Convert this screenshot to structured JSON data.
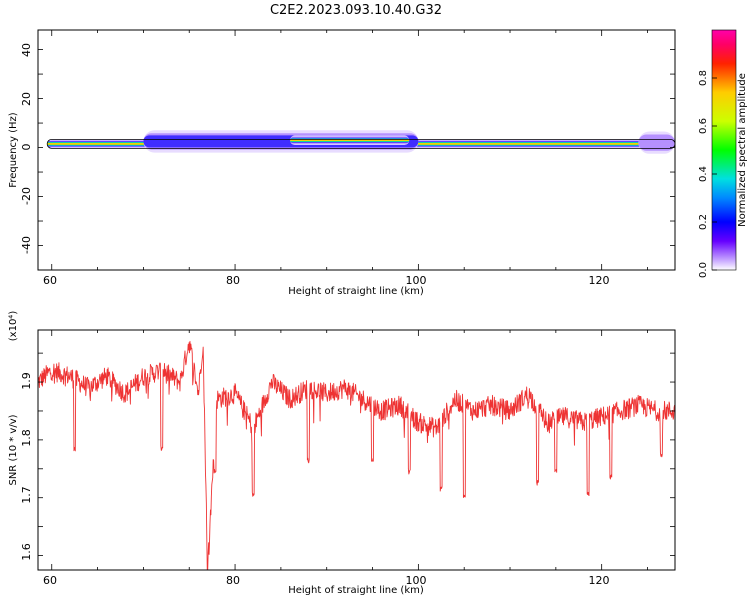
{
  "title": "C2E2.2023.093.10.40.G32",
  "chart_data": [
    {
      "type": "heatmap",
      "xlabel": "Height of straight line (km)",
      "ylabel": "Frequency (Hz)",
      "xlim": [
        58.5,
        128
      ],
      "ylim": [
        -50,
        48
      ],
      "x_ticks": [
        "60",
        "80",
        "100",
        "120"
      ],
      "y_ticks": [
        "40",
        "20",
        "0",
        "-20",
        "-40"
      ],
      "colorbar": {
        "label": "Normalized spectral amplitude",
        "range": [
          0,
          1
        ],
        "ticks": [
          "0.0",
          "0.2",
          "0.4",
          "0.6",
          "0.8"
        ]
      },
      "features": [
        {
          "x": [
            59.5,
            128
          ],
          "freq": 1.5,
          "halfwidth": 1.5,
          "amplitude": 0.9
        },
        {
          "x": [
            70,
            100
          ],
          "freq": 2.5,
          "halfwidth": 3.5,
          "amplitude": 0.45
        },
        {
          "x": [
            86,
            99
          ],
          "freq": 3,
          "halfwidth": 1.5,
          "amplitude": 0.85
        },
        {
          "x": [
            124,
            128
          ],
          "freq": 2,
          "halfwidth": 3.5,
          "amplitude": 0.3
        }
      ]
    },
    {
      "type": "line",
      "xlabel": "Height of straight line (km)",
      "ylabel": "SNR (10 * v/v)",
      "multiplier_label": "(x10⁴)",
      "xlim": [
        58.5,
        128
      ],
      "ylim": [
        1.575,
        1.99
      ],
      "x_ticks": [
        "60",
        "80",
        "100",
        "120"
      ],
      "y_ticks": [
        "1.9",
        "1.8",
        "1.7",
        "1.6"
      ],
      "color": "#ee3333",
      "key_points": [
        [
          58.5,
          1.9
        ],
        [
          60,
          1.92
        ],
        [
          62,
          1.91
        ],
        [
          64,
          1.89
        ],
        [
          66,
          1.91
        ],
        [
          68,
          1.88
        ],
        [
          70,
          1.91
        ],
        [
          72,
          1.92
        ],
        [
          74,
          1.9
        ],
        [
          75,
          1.97
        ],
        [
          76,
          1.88
        ],
        [
          76.5,
          1.97
        ],
        [
          77,
          1.58
        ],
        [
          78,
          1.87
        ],
        [
          80,
          1.88
        ],
        [
          82,
          1.82
        ],
        [
          84,
          1.9
        ],
        [
          86,
          1.87
        ],
        [
          88,
          1.89
        ],
        [
          90,
          1.88
        ],
        [
          92,
          1.89
        ],
        [
          94,
          1.87
        ],
        [
          96,
          1.85
        ],
        [
          98,
          1.86
        ],
        [
          100,
          1.83
        ],
        [
          102,
          1.82
        ],
        [
          104,
          1.87
        ],
        [
          106,
          1.85
        ],
        [
          108,
          1.86
        ],
        [
          110,
          1.85
        ],
        [
          112,
          1.88
        ],
        [
          114,
          1.83
        ],
        [
          116,
          1.84
        ],
        [
          118,
          1.83
        ],
        [
          120,
          1.84
        ],
        [
          122,
          1.85
        ],
        [
          124,
          1.86
        ],
        [
          126,
          1.85
        ],
        [
          128,
          1.85
        ]
      ],
      "dips": [
        [
          62.5,
          1.78
        ],
        [
          72,
          1.78
        ],
        [
          77.8,
          1.74
        ],
        [
          82,
          1.7
        ],
        [
          88,
          1.76
        ],
        [
          95,
          1.76
        ],
        [
          99,
          1.74
        ],
        [
          102.5,
          1.71
        ],
        [
          105,
          1.7
        ],
        [
          113,
          1.72
        ],
        [
          115,
          1.74
        ],
        [
          118.5,
          1.7
        ],
        [
          121,
          1.73
        ],
        [
          126.5,
          1.77
        ]
      ]
    }
  ]
}
